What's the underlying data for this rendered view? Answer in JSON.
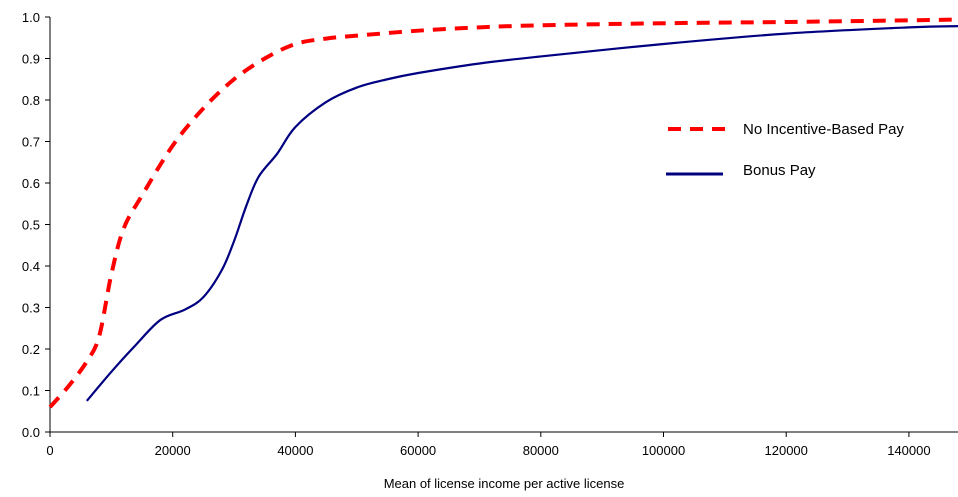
{
  "chart_data": {
    "type": "line",
    "title": "",
    "xlabel": "Mean of license income per active license",
    "ylabel": "",
    "xlim": [
      0,
      148000
    ],
    "ylim": [
      0,
      1.0
    ],
    "x_ticks": [
      0,
      20000,
      40000,
      60000,
      80000,
      100000,
      120000,
      140000
    ],
    "x_tick_labels": [
      "0",
      "20000",
      "40000",
      "60000",
      "80000",
      "100000",
      "120000",
      "140000"
    ],
    "y_ticks": [
      0,
      0.1,
      0.2,
      0.3,
      0.4,
      0.5,
      0.6,
      0.7,
      0.8,
      0.9,
      1.0
    ],
    "y_tick_labels": [
      "0.0",
      "0.1",
      "0.2",
      "0.3",
      "0.4",
      "0.5",
      "0.6",
      "0.7",
      "0.8",
      "0.9",
      "1.0"
    ],
    "grid": false,
    "legend_position": "right",
    "series": [
      {
        "name": "No Incentive-Based Pay",
        "style": "dashed",
        "color": "#ff0000",
        "x": [
          0,
          3000,
          6000,
          8000,
          10000,
          12000,
          15000,
          20000,
          25000,
          30000,
          35000,
          40000,
          45000,
          50000,
          60000,
          70000,
          80000,
          100000,
          120000,
          140000,
          148000
        ],
        "y": [
          0.06,
          0.11,
          0.17,
          0.23,
          0.38,
          0.49,
          0.57,
          0.69,
          0.78,
          0.85,
          0.9,
          0.935,
          0.948,
          0.955,
          0.967,
          0.975,
          0.98,
          0.985,
          0.988,
          0.992,
          0.994
        ]
      },
      {
        "name": "Bonus Pay",
        "style": "solid",
        "color": "#000080",
        "x": [
          6000,
          10000,
          14000,
          18000,
          22000,
          25000,
          28000,
          30000,
          32000,
          34000,
          37000,
          40000,
          45000,
          50000,
          55000,
          60000,
          70000,
          80000,
          100000,
          120000,
          140000,
          148000
        ],
        "y": [
          0.075,
          0.145,
          0.21,
          0.27,
          0.295,
          0.325,
          0.39,
          0.46,
          0.545,
          0.615,
          0.67,
          0.735,
          0.795,
          0.83,
          0.85,
          0.865,
          0.888,
          0.905,
          0.935,
          0.96,
          0.975,
          0.978
        ]
      }
    ]
  }
}
